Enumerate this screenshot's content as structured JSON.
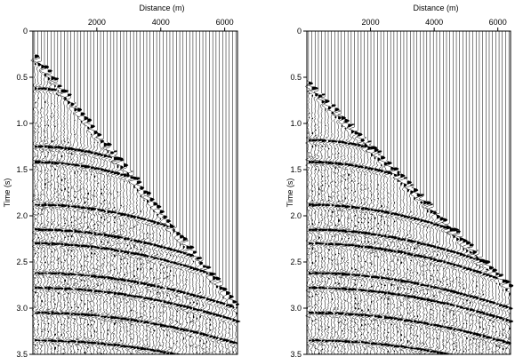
{
  "chart_data": [
    {
      "type": "seismic_wiggle_gather",
      "xlabel": "Distance (m)",
      "ylabel": "Time (s)",
      "x_ticks": [
        "2000",
        "4000",
        "6000"
      ],
      "y_ticks": [
        "0",
        "0.5",
        "1.0",
        "1.5",
        "2.0",
        "2.5",
        "3.0",
        "3.5"
      ],
      "xlim": [
        0,
        6400
      ],
      "ylim": [
        0,
        3.5
      ],
      "trace_count": 62,
      "trace_spacing_m": 100,
      "first_break": {
        "t0_s": 0.25,
        "slowness_s_per_m": 0.00044
      },
      "reflections_s": [
        0.62,
        1.25,
        1.42,
        1.88,
        2.15,
        2.3,
        2.62,
        2.78,
        3.05,
        3.35
      ],
      "x_axis_position": "top",
      "grid": false,
      "legend": "none"
    },
    {
      "type": "seismic_wiggle_gather",
      "xlabel": "Distance (m)",
      "ylabel": "Time (s)",
      "x_ticks": [
        "2000",
        "4000",
        "6000"
      ],
      "y_ticks": [
        "0",
        "0.5",
        "1.0",
        "1.5",
        "2.0",
        "2.5",
        "3.0",
        "3.5"
      ],
      "xlim": [
        0,
        6400
      ],
      "ylim": [
        0,
        3.5
      ],
      "trace_count": 62,
      "trace_spacing_m": 100,
      "first_break": {
        "t0_s": 0.55,
        "slowness_s_per_m": 0.00036
      },
      "reflections_s": [
        0.62,
        1.18,
        1.42,
        1.88,
        2.15,
        2.3,
        2.62,
        2.78,
        3.05,
        3.35
      ],
      "x_axis_position": "top",
      "grid": false,
      "legend": "none"
    }
  ]
}
